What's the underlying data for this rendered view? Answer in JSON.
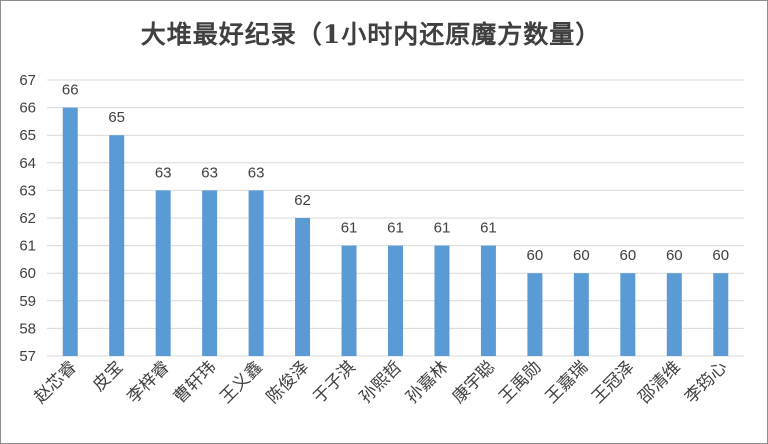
{
  "chart_data": {
    "type": "bar",
    "title": "大堆最好纪录（1小时内还原魔方数量）",
    "xlabel": "",
    "ylabel": "",
    "categories": [
      "赵芯睿",
      "皮宝",
      "李梓睿",
      "曹轩玮",
      "王义鑫",
      "陈俊泽",
      "于子淇",
      "孙熙哲",
      "孙嘉林",
      "康宇聪",
      "王禹勋",
      "王嘉瑞",
      "王冠泽",
      "邵清维",
      "李筠心"
    ],
    "values": [
      66,
      65,
      63,
      63,
      63,
      62,
      61,
      61,
      61,
      61,
      60,
      60,
      60,
      60,
      60
    ],
    "ylim": [
      57,
      67
    ],
    "yticks": [
      57,
      58,
      59,
      60,
      61,
      62,
      63,
      64,
      65,
      66,
      67
    ],
    "grid": true,
    "bar_color": "#5b9bd5",
    "grid_color": "#d9d9d9"
  }
}
